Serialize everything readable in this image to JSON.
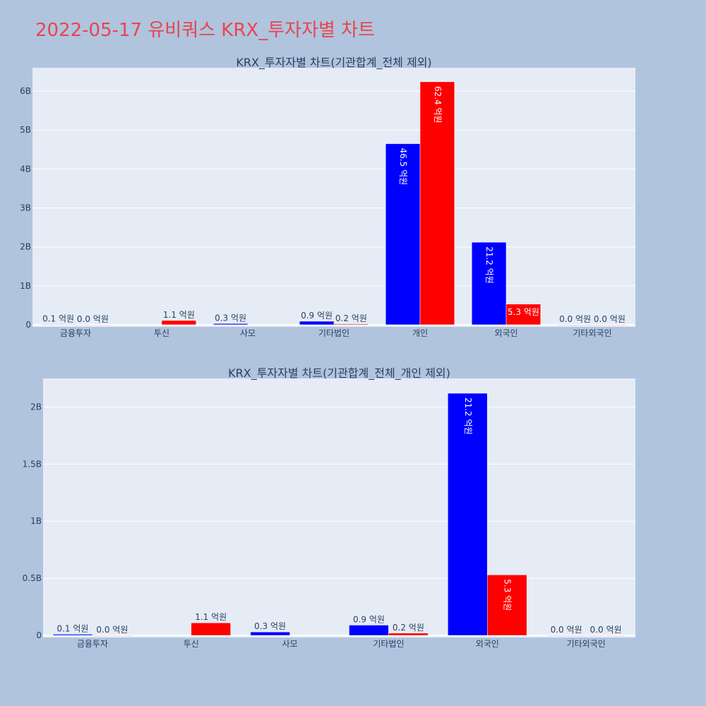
{
  "page": {
    "title": "2022-05-17 유비쿼스 KRX_투자자별 차트"
  },
  "chart_data": [
    {
      "type": "bar",
      "title": "KRX_투자자별 차트(기관합계_전체 제외)",
      "categories": [
        "금융투자",
        "투신",
        "사모",
        "기타법인",
        "개인",
        "외국인",
        "기타외국인"
      ],
      "series": [
        {
          "color": "#0000ff",
          "values": [
            0.01,
            0,
            0.03,
            0.09,
            4.65,
            2.12,
            0.0
          ],
          "labels": [
            "0.1 억원",
            "",
            "0.3 억원",
            "0.9 억원",
            "46.5 억원",
            "21.2 억원",
            "0.0 억원"
          ]
        },
        {
          "color": "#ff0000",
          "values": [
            0.0,
            0.11,
            0,
            0.02,
            6.24,
            0.53,
            0.0
          ],
          "labels": [
            "0.0 억원",
            "1.1 억원",
            "",
            "0.2 억원",
            "62.4 억원",
            "5.3 억원",
            "0.0 억원"
          ]
        }
      ],
      "yticks": [
        0,
        1,
        2,
        3,
        4,
        5,
        6
      ],
      "ytick_labels": [
        "0",
        "1B",
        "2B",
        "3B",
        "4B",
        "5B",
        "6B"
      ],
      "ylim": [
        0,
        6.6
      ],
      "grid": true
    },
    {
      "type": "bar",
      "title": "KRX_투자자별 차트(기관합계_전체_개인 제외)",
      "categories": [
        "금융투자",
        "투신",
        "사모",
        "기타법인",
        "외국인",
        "기타외국인"
      ],
      "series": [
        {
          "color": "#0000ff",
          "values": [
            0.01,
            0,
            0.03,
            0.09,
            2.12,
            0.0
          ],
          "labels": [
            "0.1 억원",
            "",
            "0.3 억원",
            "0.9 억원",
            "21.2 억원",
            "0.0 억원"
          ]
        },
        {
          "color": "#ff0000",
          "values": [
            0.0,
            0.11,
            0,
            0.02,
            0.53,
            0.0
          ],
          "labels": [
            "0.0 억원",
            "1.1 억원",
            "",
            "0.2 억원",
            "5.3 억원",
            "0.0 억원"
          ]
        }
      ],
      "yticks": [
        0,
        0.5,
        1,
        1.5,
        2
      ],
      "ytick_labels": [
        "0",
        "0.5B",
        "1B",
        "1.5B",
        "2B"
      ],
      "ylim": [
        0,
        2.25
      ],
      "grid": true
    }
  ]
}
